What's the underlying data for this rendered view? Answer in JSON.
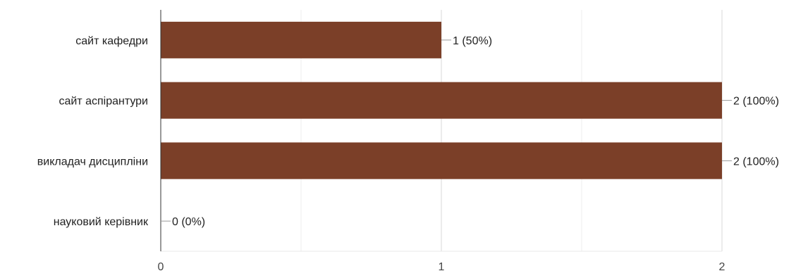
{
  "chart_data": {
    "type": "bar",
    "orientation": "horizontal",
    "categories": [
      "сайт кафедри",
      "сайт аспірантури",
      "викладач дисципліни",
      "науковий керівник"
    ],
    "values": [
      1,
      2,
      2,
      0
    ],
    "data_labels": [
      "1 (50%)",
      "2 (100%)",
      "2 (100%)",
      "0 (0%)"
    ],
    "xlim": [
      0,
      2
    ],
    "x_ticks": [
      "0",
      "1",
      "2"
    ],
    "grid": true,
    "bar_color": "#7b3f28"
  }
}
